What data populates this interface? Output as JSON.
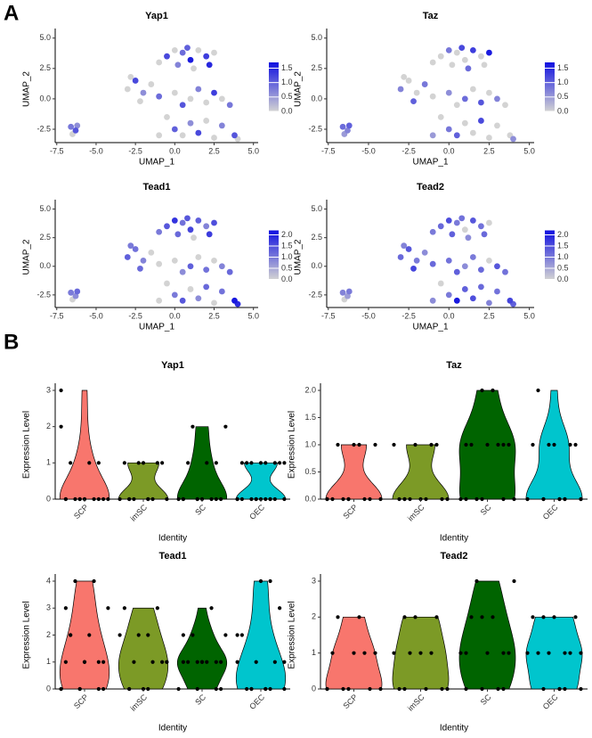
{
  "panels": [
    "A",
    "B"
  ],
  "chart_data": [
    {
      "type": "scatter",
      "title": "Yap1",
      "xlabel": "UMAP_1",
      "ylabel": "UMAP_2",
      "x": [
        -6.6,
        -6.3,
        -6.5,
        -6.2,
        -0.5,
        0,
        0.5,
        1,
        1.5,
        2,
        2.5,
        0.2,
        1.2,
        2.2,
        -1,
        0.8,
        -3,
        -2.5,
        -2,
        -1.5,
        -2.2,
        -1,
        -2.8,
        0,
        0.5,
        1,
        1.5,
        2,
        2.5,
        3,
        3.5,
        -0.5,
        0,
        0.5,
        1,
        1.5,
        2,
        2.5,
        3,
        3.8,
        4,
        -1
      ],
      "y": [
        -2.3,
        -2.6,
        -2.9,
        -2.2,
        3.5,
        4,
        3.8,
        3.2,
        4,
        3.5,
        3.8,
        2.8,
        2.5,
        2.8,
        3,
        4.2,
        0.8,
        1.5,
        0.5,
        1.2,
        -0.2,
        0.2,
        1.8,
        0.5,
        -0.5,
        0,
        0.8,
        -0.3,
        0.5,
        0,
        -0.5,
        -1.5,
        -2.5,
        -3,
        -2,
        -2.8,
        -1.8,
        -3.2,
        -2.2,
        -3,
        -3.3,
        -3
      ],
      "values": [
        0.8,
        1.1,
        0,
        0.6,
        1.2,
        0,
        0.9,
        1.6,
        0,
        1.3,
        0,
        0.7,
        0,
        1.5,
        0,
        1.0,
        0,
        1.2,
        0.6,
        0,
        0,
        0.9,
        0,
        0,
        1.1,
        0,
        0.7,
        0,
        1.3,
        0,
        0.8,
        0,
        1.0,
        0,
        0.6,
        1.2,
        0,
        0,
        0.7,
        1.1,
        0,
        0
      ],
      "xlim": [
        -7.6,
        5.3
      ],
      "ylim": [
        -3.6,
        5.2
      ],
      "xticks": [
        {
          "value": -7.5,
          "label": "-7.5"
        },
        {
          "value": -5,
          "label": "-5.0"
        },
        {
          "value": -2.5,
          "label": "-2.5"
        },
        {
          "value": 0,
          "label": "0.0"
        },
        {
          "value": 2.5,
          "label": "2.5"
        },
        {
          "value": 5,
          "label": "5.0"
        }
      ],
      "yticks": [
        {
          "value": -2.5,
          "label": "-2.5"
        },
        {
          "value": 0,
          "label": "0.0"
        },
        {
          "value": 2.5,
          "label": "2.5"
        },
        {
          "value": 5,
          "label": "5.0"
        }
      ],
      "clim": [
        0,
        1.7
      ],
      "cticks": [
        {
          "value": 0,
          "label": "0.0"
        },
        {
          "value": 0.5,
          "label": "0.5"
        },
        {
          "value": 1,
          "label": "1.0"
        },
        {
          "value": 1.5,
          "label": "1.5"
        }
      ],
      "colors": [
        "#d3d3d3",
        "#1010e0"
      ]
    },
    {
      "type": "scatter",
      "title": "Taz",
      "xlabel": "UMAP_1",
      "ylabel": "UMAP_2",
      "x": [
        -6.6,
        -6.3,
        -6.5,
        -6.2,
        -0.5,
        0,
        0.5,
        1,
        1.5,
        2,
        2.5,
        0.2,
        1.2,
        2.2,
        -1,
        0.8,
        -3,
        -2.5,
        -2,
        -1.5,
        -2.2,
        -1,
        -2.8,
        0,
        0.5,
        1,
        1.5,
        2,
        2.5,
        3,
        3.5,
        -0.5,
        0,
        0.5,
        1,
        1.5,
        2,
        2.5,
        3,
        3.8,
        4,
        -1
      ],
      "y": [
        -2.3,
        -2.6,
        -2.9,
        -2.2,
        3.5,
        4,
        3.8,
        3.2,
        4,
        3.5,
        3.8,
        2.8,
        2.5,
        2.8,
        3,
        4.2,
        0.8,
        1.5,
        0.5,
        1.2,
        -0.2,
        0.2,
        1.8,
        0.5,
        -0.5,
        0,
        0.8,
        -0.3,
        0.5,
        0,
        -0.5,
        -1.5,
        -2.5,
        -3,
        -2,
        -2.8,
        -1.8,
        -3.2,
        -2.2,
        -3,
        -3.3,
        -3
      ],
      "values": [
        0.9,
        0.7,
        0.5,
        1.0,
        0,
        0.8,
        0,
        0,
        1.3,
        0,
        1.6,
        0,
        0.9,
        0,
        0,
        1.2,
        0.7,
        0,
        0,
        0.8,
        1.0,
        0,
        0,
        0.6,
        0,
        0.9,
        0,
        1.1,
        0,
        0.7,
        0,
        0,
        0.8,
        1.0,
        0,
        0,
        1.2,
        0,
        0,
        0,
        0.6,
        0.5
      ],
      "xlim": [
        -7.6,
        5.3
      ],
      "ylim": [
        -3.6,
        5.2
      ],
      "xticks": [
        {
          "value": -7.5,
          "label": "-7.5"
        },
        {
          "value": -5,
          "label": "-5.0"
        },
        {
          "value": -2.5,
          "label": "-2.5"
        },
        {
          "value": 0,
          "label": "0.0"
        },
        {
          "value": 2.5,
          "label": "2.5"
        },
        {
          "value": 5,
          "label": "5.0"
        }
      ],
      "yticks": [
        {
          "value": -2.5,
          "label": "-2.5"
        },
        {
          "value": 0,
          "label": "0.0"
        },
        {
          "value": 2.5,
          "label": "2.5"
        },
        {
          "value": 5,
          "label": "5.0"
        }
      ],
      "clim": [
        0,
        1.7
      ],
      "cticks": [
        {
          "value": 0,
          "label": "0.0"
        },
        {
          "value": 0.5,
          "label": "0.5"
        },
        {
          "value": 1,
          "label": "1.0"
        },
        {
          "value": 1.5,
          "label": "1.5"
        }
      ],
      "colors": [
        "#d3d3d3",
        "#1010e0"
      ]
    },
    {
      "type": "scatter",
      "title": "Tead1",
      "xlabel": "UMAP_1",
      "ylabel": "UMAP_2",
      "x": [
        -6.6,
        -6.3,
        -6.5,
        -6.2,
        -0.5,
        0,
        0.5,
        1,
        1.5,
        2,
        2.5,
        0.2,
        1.2,
        2.2,
        -1,
        0.8,
        -3,
        -2.5,
        -2,
        -1.5,
        -2.2,
        -1,
        -2.8,
        0,
        0.5,
        1,
        1.5,
        2,
        2.5,
        3,
        3.5,
        -0.5,
        0,
        0.5,
        1,
        1.5,
        2,
        2.5,
        3,
        3.8,
        4,
        -1
      ],
      "y": [
        -2.3,
        -2.6,
        -2.9,
        -2.2,
        3.5,
        4,
        3.8,
        3.2,
        4,
        3.5,
        3.8,
        2.8,
        2.5,
        2.8,
        3,
        4.2,
        0.8,
        1.5,
        0.5,
        1.2,
        -0.2,
        0.2,
        1.8,
        0.5,
        -0.5,
        0,
        0.8,
        -0.3,
        0.5,
        0,
        -0.5,
        -1.5,
        -2.5,
        -3,
        -2,
        -2.8,
        -1.8,
        -3.2,
        -2.2,
        -3,
        -3.3,
        -3
      ],
      "values": [
        1.0,
        0.8,
        0,
        1.2,
        1.4,
        1.8,
        1.1,
        1.6,
        1.3,
        0.9,
        1.5,
        1.2,
        0,
        1.7,
        1.0,
        1.4,
        1.3,
        1.1,
        0.9,
        0,
        1.2,
        0,
        1.0,
        0,
        0.8,
        1.3,
        0,
        1.1,
        0,
        0.9,
        1.2,
        0,
        1.0,
        1.4,
        0,
        0.8,
        1.2,
        0,
        1.1,
        2.1,
        1.9,
        0
      ],
      "xlim": [
        -7.6,
        5.3
      ],
      "ylim": [
        -3.6,
        5.2
      ],
      "xticks": [
        {
          "value": -7.5,
          "label": "-7.5"
        },
        {
          "value": -5,
          "label": "-5.0"
        },
        {
          "value": -2.5,
          "label": "-2.5"
        },
        {
          "value": 0,
          "label": "0.0"
        },
        {
          "value": 2.5,
          "label": "2.5"
        },
        {
          "value": 5,
          "label": "5.0"
        }
      ],
      "yticks": [
        {
          "value": -2.5,
          "label": "-2.5"
        },
        {
          "value": 0,
          "label": "0.0"
        },
        {
          "value": 2.5,
          "label": "2.5"
        },
        {
          "value": 5,
          "label": "5.0"
        }
      ],
      "clim": [
        0,
        2.2
      ],
      "cticks": [
        {
          "value": 0,
          "label": "0.0"
        },
        {
          "value": 0.5,
          "label": "0.5"
        },
        {
          "value": 1,
          "label": "1.0"
        },
        {
          "value": 1.5,
          "label": "1.5"
        },
        {
          "value": 2,
          "label": "2.0"
        }
      ],
      "colors": [
        "#d3d3d3",
        "#1010e0"
      ]
    },
    {
      "type": "scatter",
      "title": "Tead2",
      "xlabel": "UMAP_1",
      "ylabel": "UMAP_2",
      "x": [
        -6.6,
        -6.3,
        -6.5,
        -6.2,
        -0.5,
        0,
        0.5,
        1,
        1.5,
        2,
        2.5,
        0.2,
        1.2,
        2.2,
        -1,
        0.8,
        -3,
        -2.5,
        -2,
        -1.5,
        -2.2,
        -1,
        -2.8,
        0,
        0.5,
        1,
        1.5,
        2,
        2.5,
        3,
        3.5,
        -0.5,
        0,
        0.5,
        1,
        1.5,
        2,
        2.5,
        3,
        3.8,
        4,
        -1
      ],
      "y": [
        -2.3,
        -2.6,
        -2.9,
        -2.2,
        3.5,
        4,
        3.8,
        3.2,
        4,
        3.5,
        3.8,
        2.8,
        2.5,
        2.8,
        3,
        4.2,
        0.8,
        1.5,
        0.5,
        1.2,
        -0.2,
        0.2,
        1.8,
        0.5,
        -0.5,
        0,
        0.8,
        -0.3,
        0.5,
        0,
        -0.5,
        -1.5,
        -2.5,
        -3,
        -2,
        -2.8,
        -1.8,
        -3.2,
        -2.2,
        -3,
        -3.3,
        -3
      ],
      "values": [
        0.9,
        0.6,
        0,
        1.0,
        1.2,
        1.5,
        1.0,
        0,
        1.4,
        1.1,
        0,
        1.3,
        0.8,
        1.2,
        1.0,
        1.1,
        1.2,
        1.4,
        1.0,
        0.8,
        1.6,
        1.2,
        0.9,
        1.1,
        1.3,
        0.8,
        1.0,
        1.2,
        0,
        1.4,
        1.1,
        0,
        1.0,
        2.1,
        1.3,
        1.5,
        1.2,
        0.9,
        1.1,
        1.6,
        1.3,
        0.8
      ],
      "xlim": [
        -7.6,
        5.3
      ],
      "ylim": [
        -3.6,
        5.2
      ],
      "xticks": [
        {
          "value": -7.5,
          "label": "-7.5"
        },
        {
          "value": -5,
          "label": "-5.0"
        },
        {
          "value": -2.5,
          "label": "-2.5"
        },
        {
          "value": 0,
          "label": "0.0"
        },
        {
          "value": 2.5,
          "label": "2.5"
        },
        {
          "value": 5,
          "label": "5.0"
        }
      ],
      "yticks": [
        {
          "value": -2.5,
          "label": "-2.5"
        },
        {
          "value": 0,
          "label": "0.0"
        },
        {
          "value": 2.5,
          "label": "2.5"
        },
        {
          "value": 5,
          "label": "5.0"
        }
      ],
      "clim": [
        0,
        2.2
      ],
      "cticks": [
        {
          "value": 0,
          "label": "0.0"
        },
        {
          "value": 0.5,
          "label": "0.5"
        },
        {
          "value": 1,
          "label": "1.0"
        },
        {
          "value": 1.5,
          "label": "1.5"
        },
        {
          "value": 2,
          "label": "2.0"
        }
      ],
      "colors": [
        "#d3d3d3",
        "#1010e0"
      ]
    },
    {
      "type": "violin",
      "title": "Yap1",
      "xlabel": "Identity",
      "ylabel": "Expression Level",
      "categories": [
        "SCP",
        "imSC",
        "SC",
        "OEC"
      ],
      "colors": [
        "#f8766d",
        "#7c9a26",
        "#006400",
        "#00c5cd"
      ],
      "values": [
        [
          3,
          0,
          0,
          0,
          0,
          0,
          1,
          1,
          0,
          0,
          0,
          2,
          0,
          1,
          0,
          0
        ],
        [
          0,
          0,
          0,
          0,
          0,
          0,
          1,
          1,
          1,
          1,
          1,
          0,
          0
        ],
        [
          0,
          0,
          0,
          0,
          0,
          1,
          1,
          2,
          2,
          0,
          0,
          0,
          1,
          0
        ],
        [
          0,
          0,
          0,
          0,
          0,
          0,
          0,
          0,
          1,
          1,
          1,
          1,
          1,
          1,
          0,
          0,
          0,
          1,
          1,
          0
        ]
      ],
      "ylim": [
        0,
        3
      ],
      "yticks": [
        0,
        1,
        2,
        3
      ]
    },
    {
      "type": "violin",
      "title": "Taz",
      "xlabel": "Identity",
      "ylabel": "Expression Level",
      "categories": [
        "SCP",
        "imSC",
        "SC",
        "OEC"
      ],
      "colors": [
        "#f8766d",
        "#7c9a26",
        "#006400",
        "#00c5cd"
      ],
      "values": [
        [
          0,
          0,
          0,
          0,
          1,
          1,
          1,
          1,
          0,
          0,
          0,
          0,
          0
        ],
        [
          0,
          0,
          0,
          0,
          1,
          1,
          1,
          1,
          0,
          0,
          0,
          0
        ],
        [
          2,
          0,
          0,
          1,
          1,
          1,
          2,
          0,
          0,
          1,
          0,
          0,
          1,
          1
        ],
        [
          0,
          0,
          0,
          0,
          0,
          1,
          1,
          1,
          1,
          1,
          2,
          0,
          0,
          0,
          0,
          0
        ]
      ],
      "ylim": [
        0,
        2
      ],
      "yticks": [
        {
          "value": 0,
          "label": "0.0"
        },
        {
          "value": 0.5,
          "label": "0.5"
        },
        {
          "value": 1,
          "label": "1.0"
        },
        {
          "value": 1.5,
          "label": "1.5"
        },
        {
          "value": 2,
          "label": "2.0"
        }
      ]
    },
    {
      "type": "violin",
      "title": "Tead1",
      "xlabel": "Identity",
      "ylabel": "Expression Level",
      "categories": [
        "SCP",
        "imSC",
        "SC",
        "OEC"
      ],
      "colors": [
        "#f8766d",
        "#7c9a26",
        "#006400",
        "#00c5cd"
      ],
      "values": [
        [
          0,
          0,
          0,
          1,
          1,
          1,
          2,
          2,
          3,
          4,
          4,
          0,
          0,
          1,
          3,
          1,
          0,
          2
        ],
        [
          0,
          0,
          1,
          1,
          1,
          2,
          2,
          3,
          3,
          0,
          1,
          0,
          2,
          1
        ],
        [
          0,
          0,
          1,
          1,
          1,
          1,
          1,
          2,
          2,
          3,
          0,
          1,
          1,
          2,
          1,
          0
        ],
        [
          0,
          0,
          0,
          0,
          1,
          1,
          1,
          2,
          4,
          3,
          0,
          0,
          1,
          0,
          4,
          2
        ]
      ],
      "ylim": [
        0,
        4
      ],
      "yticks": [
        0,
        1,
        2,
        3,
        4
      ]
    },
    {
      "type": "violin",
      "title": "Tead2",
      "xlabel": "Identity",
      "ylabel": "Expression Level",
      "categories": [
        "SCP",
        "imSC",
        "SC",
        "OEC"
      ],
      "colors": [
        "#f8766d",
        "#7c9a26",
        "#006400",
        "#00c5cd"
      ],
      "values": [
        [
          0,
          0,
          0,
          1,
          1,
          1,
          2,
          2,
          0,
          0,
          1,
          0
        ],
        [
          0,
          0,
          0,
          1,
          1,
          1,
          2,
          2,
          0,
          1,
          0,
          2
        ],
        [
          0,
          0,
          1,
          1,
          1,
          2,
          2,
          3,
          3,
          0,
          1,
          2,
          1,
          0
        ],
        [
          0,
          0,
          0,
          1,
          1,
          1,
          1,
          2,
          2,
          2,
          1,
          0,
          1,
          2,
          0
        ]
      ],
      "ylim": [
        0,
        3
      ],
      "yticks": [
        0,
        1,
        2,
        3
      ]
    }
  ]
}
